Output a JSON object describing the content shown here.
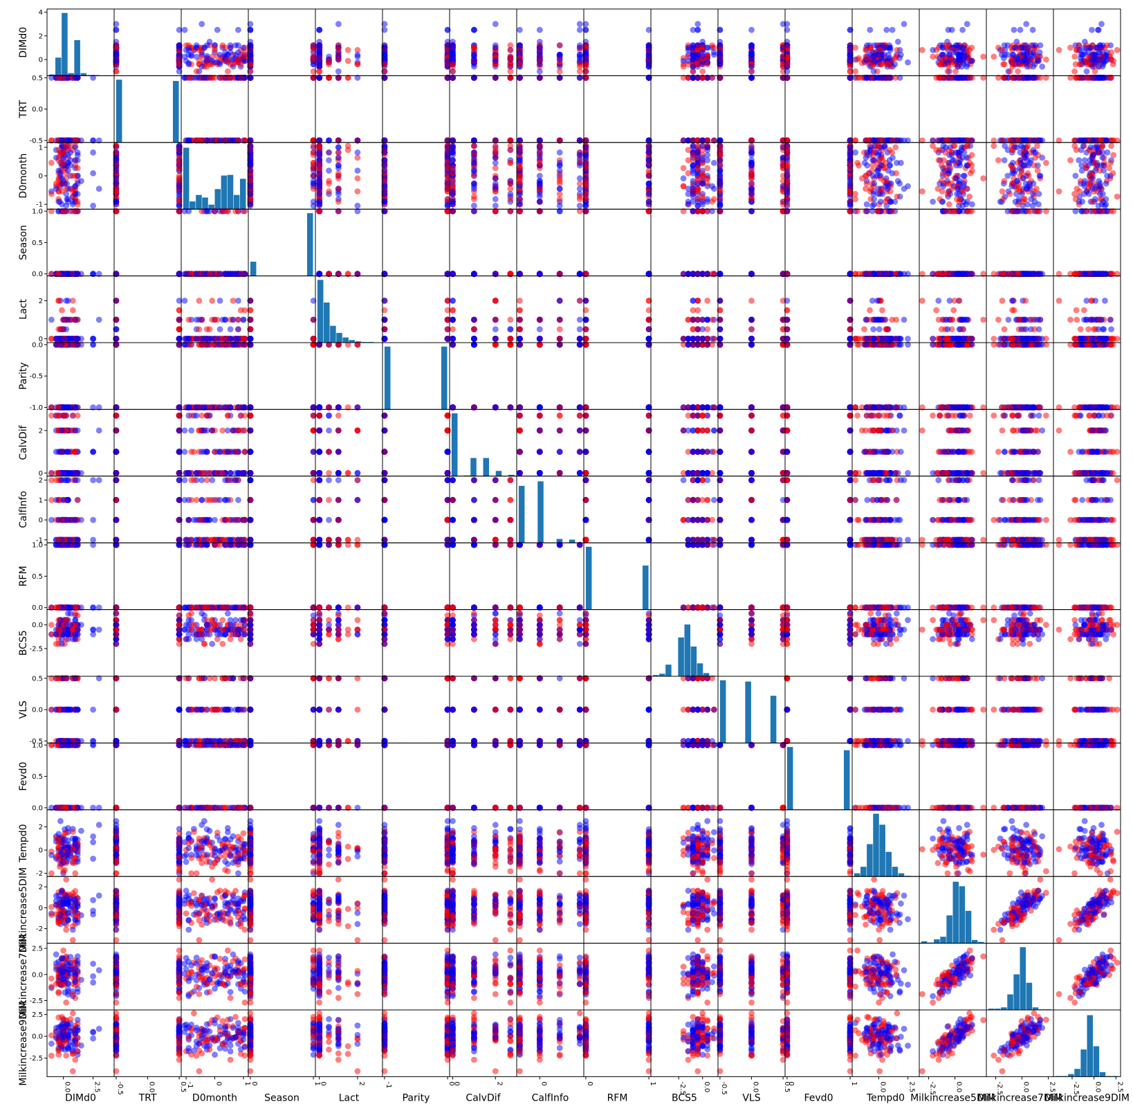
{
  "figure": {
    "variables": [
      "DIMd0",
      "TRT",
      "D0month",
      "Season",
      "Lact",
      "Parity",
      "CalvDif",
      "CalfInfo",
      "RFM",
      "BCS5",
      "VLS",
      "Fevd0",
      "Tempd0",
      "Milkincrease5DIM",
      "Milkincrease7DIM",
      "Milkincrease9DIM"
    ],
    "colors": {
      "point_a": "#ff0000",
      "point_b": "#0000ff",
      "hist": "#1f77b4",
      "frame": "#000000"
    }
  },
  "chart_data": {
    "type": "scatter",
    "layout": "scatter-matrix",
    "diagonal": "histogram",
    "legend": "none",
    "grid": false,
    "variables": [
      {
        "name": "DIMd0",
        "range": [
          -1.2,
          4.1
        ],
        "ticks": [
          "0.0",
          "2.5"
        ],
        "tick_values": [
          0,
          2.5
        ],
        "ytick_values": [
          0,
          2,
          4
        ],
        "yticks": [
          "0",
          "2",
          "4"
        ]
      },
      {
        "name": "TRT",
        "range": [
          -0.5,
          0.5
        ],
        "ticks": [
          "-0.5",
          "0.0",
          "0.5"
        ],
        "tick_values": [
          -0.5,
          0,
          0.5
        ]
      },
      {
        "name": "D0month",
        "range": [
          -1.1,
          1.1
        ],
        "ticks": [
          "-1",
          "0",
          "1"
        ],
        "tick_values": [
          -1,
          0,
          1
        ]
      },
      {
        "name": "Season",
        "range": [
          0,
          1
        ],
        "ticks": [
          "0",
          "1"
        ],
        "tick_values": [
          0,
          1
        ],
        "yticks": [
          "0.0",
          "0.5",
          "1.0"
        ],
        "ytick_values": [
          0,
          0.5,
          1
        ]
      },
      {
        "name": "Lact",
        "range": [
          -0.1,
          3.2
        ],
        "ticks": [
          "0",
          "2"
        ],
        "tick_values": [
          0,
          2
        ]
      },
      {
        "name": "Parity",
        "range": [
          -1,
          0
        ],
        "ticks": [
          "-1",
          "0"
        ],
        "tick_values": [
          -1,
          0
        ],
        "yticks": [
          "-1.0",
          "-0.5",
          "0.0"
        ],
        "ytick_values": [
          -1,
          -0.5,
          0
        ]
      },
      {
        "name": "CalvDif",
        "range": [
          -0.05,
          2.9
        ],
        "ticks": [
          "0",
          "2"
        ],
        "tick_values": [
          0,
          2
        ]
      },
      {
        "name": "CalfInfo",
        "range": [
          -1.05,
          2.1
        ],
        "ticks": [
          "0"
        ],
        "tick_values": [
          0
        ],
        "yticks": [
          "-1",
          "0",
          "1",
          "2"
        ],
        "ytick_values": [
          -1,
          0,
          1,
          2
        ]
      },
      {
        "name": "RFM",
        "range": [
          0,
          1
        ],
        "ticks": [
          "0",
          "1"
        ],
        "tick_values": [
          0,
          1
        ],
        "yticks": [
          "0.0",
          "0.5",
          "1.0"
        ],
        "ytick_values": [
          0,
          0.5,
          1
        ]
      },
      {
        "name": "BCS5",
        "range": [
          -5.2,
          1.4
        ],
        "ticks": [
          "-2.5",
          "0.0"
        ],
        "tick_values": [
          -2.5,
          0
        ]
      },
      {
        "name": "VLS",
        "range": [
          -0.5,
          0.5
        ],
        "ticks": [
          "-0.5",
          "0.0",
          "0.5"
        ],
        "tick_values": [
          -0.5,
          0,
          0.5
        ]
      },
      {
        "name": "Fevd0",
        "range": [
          0,
          1
        ],
        "ticks": [
          "0",
          "1"
        ],
        "tick_values": [
          0,
          1
        ],
        "yticks": [
          "0.0",
          "0.5",
          "1.0"
        ],
        "ytick_values": [
          0,
          0.5,
          1
        ]
      },
      {
        "name": "Tempd0",
        "range": [
          -2.1,
          3.3
        ],
        "ticks": [
          "0.0",
          "2.5"
        ],
        "tick_values": [
          0,
          2.5
        ],
        "yticks": [
          "-2",
          "0",
          "2"
        ],
        "ytick_values": [
          -2,
          0,
          2
        ]
      },
      {
        "name": "Milkincrease5DIM",
        "range": [
          -3.2,
          2.8
        ],
        "ticks": [
          "-2.5",
          "0.0"
        ],
        "tick_values": [
          -2.5,
          0
        ],
        "yticks": [
          "-2",
          "0",
          "2"
        ],
        "ytick_values": [
          -2,
          0,
          2
        ]
      },
      {
        "name": "Milkincrease7DIM",
        "range": [
          -3.2,
          2.8
        ],
        "ticks": [
          "-2.5",
          "0.0",
          "2.5"
        ],
        "tick_values": [
          -2.5,
          0,
          2.5
        ]
      },
      {
        "name": "Milkincrease9DIM",
        "range": [
          -4.4,
          2.8
        ],
        "ticks": [
          "-2.5",
          "0.0",
          "2.5"
        ],
        "tick_values": [
          -2.5,
          0,
          2.5
        ]
      }
    ],
    "histograms": [
      [
        0.02,
        0.28,
        0.97,
        0.04,
        0.55,
        0.04,
        0.01,
        0.01,
        0.005,
        0.005
      ],
      [
        0.97,
        0,
        0,
        0,
        0,
        0,
        0,
        0,
        0,
        0.95
      ],
      [
        0.95,
        0.12,
        0.22,
        0.18,
        0.07,
        0.31,
        0.52,
        0.53,
        0.22,
        0.47
      ],
      [
        0.22,
        0,
        0,
        0,
        0,
        0,
        0,
        0,
        0,
        0.97
      ],
      [
        0.97,
        0.62,
        0.26,
        0.15,
        0.08,
        0.04,
        0.02,
        0.01,
        0.01,
        0.005
      ],
      [
        0.97,
        0,
        0,
        0,
        0,
        0,
        0,
        0,
        0,
        0.97
      ],
      [
        0.97,
        0,
        0.01,
        0.28,
        0,
        0.28,
        0,
        0.08,
        0,
        0.02
      ],
      [
        0.88,
        0,
        0,
        0.95,
        0,
        0,
        0.06,
        0,
        0.05,
        0
      ],
      [
        0.97,
        0,
        0,
        0,
        0,
        0,
        0,
        0,
        0,
        0.68
      ],
      [
        0.02,
        0.04,
        0.18,
        0,
        0.6,
        0.8,
        0.46,
        0.2,
        0.05,
        0.01
      ],
      [
        0.97,
        0,
        0,
        0,
        0.95,
        0,
        0,
        0,
        0.73,
        0
      ],
      [
        0.97,
        0,
        0,
        0,
        0,
        0,
        0,
        0,
        0,
        0.92
      ],
      [
        0.05,
        0.15,
        0.5,
        0.97,
        0.8,
        0.38,
        0.15,
        0.05,
        0.01,
        0.005
      ],
      [
        0.03,
        0.01,
        0.06,
        0.1,
        0.43,
        0.95,
        0.88,
        0.5,
        0.05,
        0.02
      ],
      [
        0.02,
        0.02,
        0.04,
        0.24,
        0.55,
        0.97,
        0.42,
        0.04,
        0.01,
        0.01
      ],
      [
        0.01,
        0.01,
        0.04,
        0.12,
        0.42,
        0.95,
        0.47,
        0.07,
        0.01,
        0.01
      ]
    ],
    "n_points": 260
  }
}
